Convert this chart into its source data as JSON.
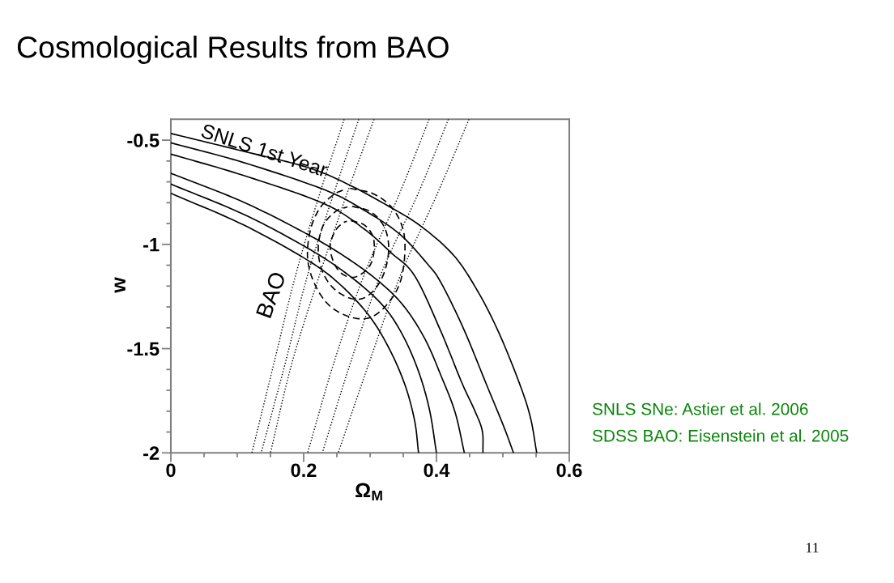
{
  "chart_data": {
    "type": "line",
    "title": "Cosmological Results from BAO",
    "xlabel": "Ω$_{M}$",
    "ylabel": "w",
    "xlim": [
      0,
      0.6
    ],
    "ylim": [
      -2,
      -0.4
    ],
    "xticks": [
      0,
      {
        "value": 0.05,
        "label": null
      },
      {
        "value": 0.1,
        "label": null
      },
      {
        "value": 0.15,
        "label": null
      },
      0.2,
      {
        "value": 0.25,
        "label": null
      },
      {
        "value": 0.3,
        "label": null
      },
      {
        "value": 0.35,
        "label": null
      },
      0.4,
      {
        "value": 0.45,
        "label": null
      },
      {
        "value": 0.5,
        "label": null
      },
      {
        "value": 0.55,
        "label": null
      },
      0.6
    ],
    "yticks": [
      -2,
      {
        "value": -1.9,
        "label": null
      },
      {
        "value": -1.8,
        "label": null
      },
      {
        "value": -1.7,
        "label": null
      },
      {
        "value": -1.6,
        "label": null
      },
      -1.5,
      {
        "value": -1.4,
        "label": null
      },
      {
        "value": -1.3,
        "label": null
      },
      {
        "value": -1.2,
        "label": null
      },
      {
        "value": -1.1,
        "label": null
      },
      -1,
      {
        "value": -0.9,
        "label": null
      },
      {
        "value": -0.8,
        "label": null
      },
      {
        "value": -0.7,
        "label": null
      },
      {
        "value": -0.6,
        "label": null
      },
      -0.5
    ],
    "grid": false,
    "marker": "none",
    "series": [
      {
        "color": "#000000",
        "line_style": "solid",
        "x": [
          0,
          0.109,
          0.206,
          0.267,
          0.328,
          0.377,
          0.426,
          0.462,
          0.493,
          0.523,
          0.541,
          0.551
        ],
        "values": [
          -0.468,
          -0.553,
          -0.631,
          -0.712,
          -0.817,
          -0.914,
          -1.053,
          -1.224,
          -1.417,
          -1.65,
          -1.824,
          -2.0
        ]
      },
      {
        "color": "#000000",
        "line_style": "solid",
        "x": [
          0,
          0.109,
          0.232,
          0.293,
          0.345,
          0.387,
          0.407,
          0.441,
          0.474,
          0.501,
          0.516
        ],
        "values": [
          -0.513,
          -0.607,
          -0.739,
          -0.84,
          -0.952,
          -1.096,
          -1.185,
          -1.406,
          -1.662,
          -1.871,
          -2.0
        ]
      },
      {
        "color": "#000000",
        "line_style": "solid",
        "x": [
          0,
          0.109,
          0.23,
          0.291,
          0.332,
          0.367,
          0.405,
          0.438,
          0.458,
          0.469,
          0.47
        ],
        "values": [
          -0.567,
          -0.669,
          -0.804,
          -0.926,
          -1.041,
          -1.15,
          -1.405,
          -1.662,
          -1.8,
          -1.895,
          -2.0
        ]
      },
      {
        "color": "#000000",
        "line_style": "solid",
        "x": [
          0,
          0.109,
          0.206,
          0.267,
          0.316,
          0.352,
          0.383,
          0.407,
          0.428,
          0.442
        ],
        "values": [
          -0.659,
          -0.797,
          -0.952,
          -1.069,
          -1.185,
          -1.301,
          -1.456,
          -1.631,
          -1.805,
          -2.0
        ]
      },
      {
        "color": "#000000",
        "line_style": "solid",
        "x": [
          0,
          0.109,
          0.206,
          0.267,
          0.316,
          0.346,
          0.371,
          0.389,
          0.4
        ],
        "values": [
          -0.711,
          -0.855,
          -1.018,
          -1.146,
          -1.282,
          -1.417,
          -1.592,
          -1.786,
          -2.0
        ]
      },
      {
        "color": "#000000",
        "line_style": "solid",
        "x": [
          0,
          0.109,
          0.206,
          0.255,
          0.298,
          0.328,
          0.352,
          0.367,
          0.373
        ],
        "values": [
          -0.755,
          -0.906,
          -1.076,
          -1.193,
          -1.34,
          -1.495,
          -1.669,
          -1.844,
          -2.0
        ]
      },
      {
        "color": "#000000",
        "line_style": "dotted",
        "x": [
          0.261,
          0.224,
          0.188,
          0.155,
          0.122
        ],
        "values": [
          -0.4,
          -0.759,
          -1.146,
          -1.573,
          -2.0
        ]
      },
      {
        "color": "#000000",
        "line_style": "dotted",
        "x": [
          0.283,
          0.245,
          0.206,
          0.172,
          0.136
        ],
        "values": [
          -0.4,
          -0.759,
          -1.146,
          -1.573,
          -2.0
        ]
      },
      {
        "color": "#000000",
        "line_style": "dotted",
        "x": [
          0.306,
          0.265,
          0.224,
          0.182,
          0.15
        ],
        "values": [
          -0.4,
          -0.759,
          -1.146,
          -1.573,
          -2.0
        ]
      },
      {
        "color": "#000000",
        "line_style": "dotted",
        "x": [
          0.389,
          0.344,
          0.291,
          0.245,
          0.206
        ],
        "values": [
          -0.4,
          -0.759,
          -1.146,
          -1.573,
          -2.0
        ]
      },
      {
        "color": "#000000",
        "line_style": "dotted",
        "x": [
          0.418,
          0.372,
          0.316,
          0.27,
          0.228
        ],
        "values": [
          -0.4,
          -0.759,
          -1.146,
          -1.573,
          -2.0
        ]
      },
      {
        "color": "#000000",
        "line_style": "dotted",
        "x": [
          0.449,
          0.401,
          0.346,
          0.298,
          0.252
        ],
        "values": [
          -0.4,
          -0.759,
          -1.146,
          -1.573,
          -2.0
        ]
      },
      {
        "color": "#000000",
        "line_style": "dashed",
        "x": [
          0.271,
          0.291,
          0.304,
          0.306,
          0.3,
          0.285,
          0.271,
          0.255,
          0.244,
          0.24,
          0.248,
          0.259,
          0.265
        ],
        "values": [
          -0.886,
          -0.906,
          -0.96,
          -1.03,
          -1.1,
          -1.146,
          -1.158,
          -1.134,
          -1.076,
          -1.003,
          -0.933,
          -0.898,
          -0.889
        ]
      },
      {
        "color": "#000000",
        "line_style": "dashed",
        "x": [
          0.273,
          0.301,
          0.321,
          0.328,
          0.323,
          0.309,
          0.289,
          0.267,
          0.243,
          0.227,
          0.222,
          0.23,
          0.249,
          0.266
        ],
        "values": [
          -0.817,
          -0.844,
          -0.914,
          -1.011,
          -1.119,
          -1.208,
          -1.259,
          -1.255,
          -1.204,
          -1.119,
          -1.011,
          -0.906,
          -0.84,
          -0.82
        ]
      },
      {
        "color": "#000000",
        "line_style": "dashed",
        "x": [
          0.27,
          0.306,
          0.334,
          0.35,
          0.352,
          0.344,
          0.324,
          0.299,
          0.27,
          0.239,
          0.217,
          0.206,
          0.21,
          0.224,
          0.245,
          0.263
        ],
        "values": [
          -0.731,
          -0.759,
          -0.828,
          -0.933,
          -1.061,
          -1.193,
          -1.294,
          -1.352,
          -1.348,
          -1.294,
          -1.193,
          -1.069,
          -0.933,
          -0.828,
          -0.762,
          -0.735
        ]
      }
    ],
    "annotations": [
      {
        "text": "SNLS 1st Year",
        "x": 0.14,
        "y": -0.578
      },
      {
        "text": "BAO",
        "x": 0.182,
        "y": -1.224
      },
      "SNLS SNe: Astier et al. 2006",
      "SDSS BAO: Eisenstein et al. 2005",
      "11"
    ]
  }
}
